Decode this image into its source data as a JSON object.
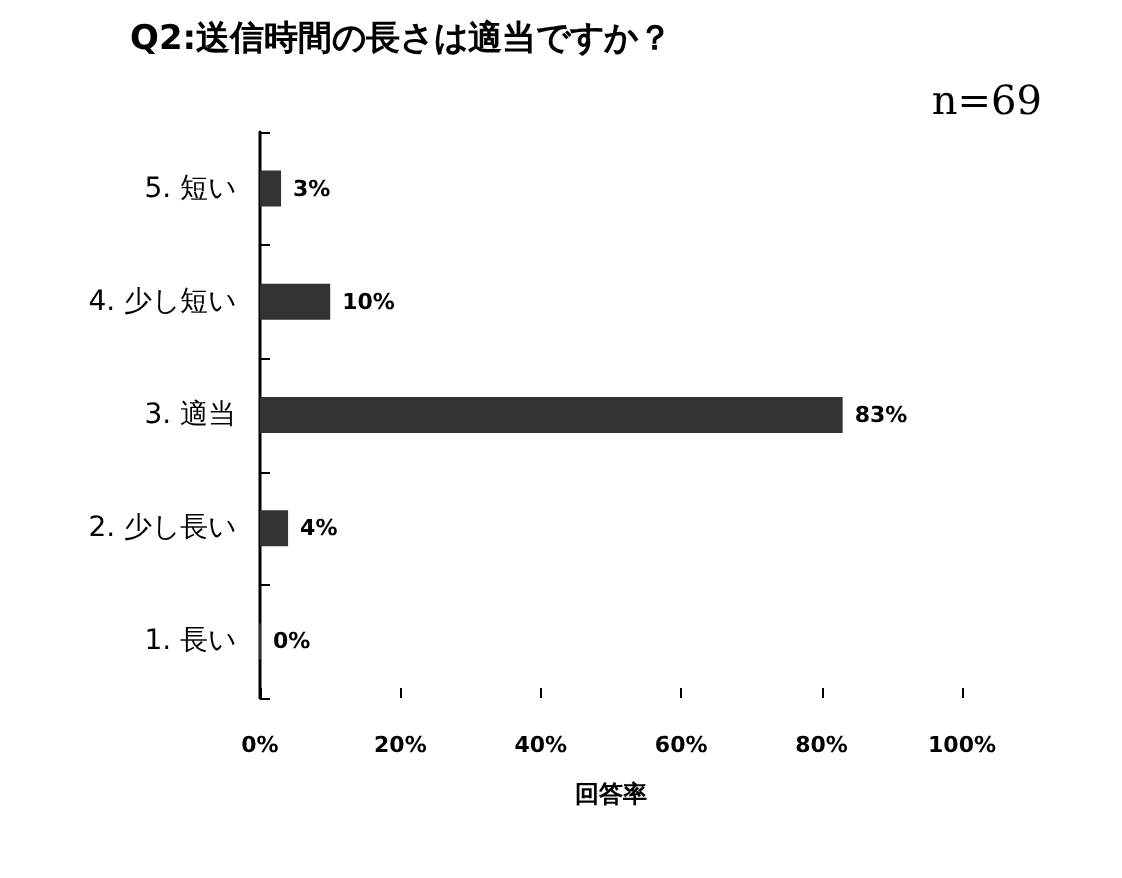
{
  "chart_data": {
    "type": "bar",
    "orientation": "horizontal",
    "title": "Q2:送信時間の長さは適当ですか？",
    "xlabel": "回答率",
    "annotations": [
      "n=69"
    ],
    "categories": [
      "5. 短い",
      "4. 少し短い",
      "3. 適当",
      "2. 少し長い",
      "1. 長い"
    ],
    "values": [
      3,
      10,
      83,
      4,
      0
    ],
    "value_labels": [
      "3%",
      "10%",
      "83%",
      "4%",
      "0%"
    ],
    "color": "#333333",
    "xlim": [
      0,
      100
    ],
    "xticks": [
      {
        "value": 0,
        "label": "0%"
      },
      {
        "value": 20,
        "label": "20%"
      },
      {
        "value": 40,
        "label": "40%"
      },
      {
        "value": 60,
        "label": "60%"
      },
      {
        "value": 80,
        "label": "80%"
      },
      {
        "value": 100,
        "label": "100%"
      }
    ],
    "grid": false
  }
}
